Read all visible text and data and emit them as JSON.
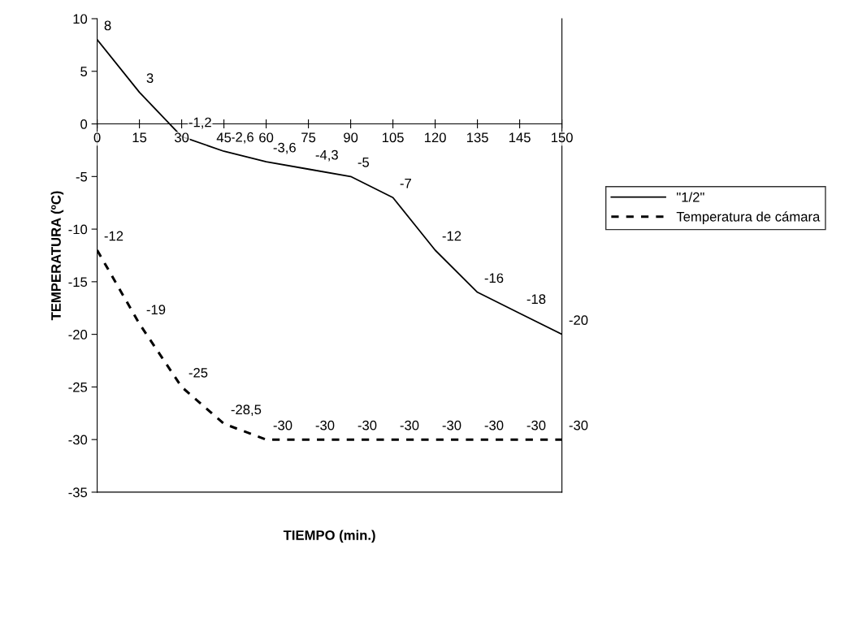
{
  "chart_data": {
    "type": "line",
    "xlabel": "TIEMPO (min.)",
    "ylabel": "TEMPERATURA (ºC)",
    "categories": [
      "0",
      "15",
      "30",
      "45",
      "60",
      "75",
      "90",
      "105",
      "120",
      "135",
      "145",
      "150"
    ],
    "series": [
      {
        "name": "\"1/2\"",
        "color": "#000000",
        "line_style": "solid",
        "values": [
          8,
          3,
          -1.2,
          -2.6,
          -3.6,
          -4.3,
          -5,
          -7,
          -12,
          -16,
          -18,
          -20
        ],
        "value_labels": [
          "8",
          "3",
          "-1,2",
          "-2,6",
          "-3,6",
          "-4,3",
          "-5",
          "-7",
          "-12",
          "-16",
          "-18",
          "-20"
        ]
      },
      {
        "name": "Temperatura de cámara",
        "color": "#000000",
        "line_style": "dashed",
        "values": [
          -12,
          -19,
          -25,
          -28.5,
          -30,
          -30,
          -30,
          -30,
          -30,
          -30,
          -30,
          -30
        ],
        "value_labels": [
          "-12",
          "-19",
          "-25",
          "-28,5",
          "-30",
          "-30",
          "-30",
          "-30",
          "-30",
          "-30",
          "-30",
          "-30"
        ]
      }
    ],
    "ylim": [
      -35,
      10
    ],
    "yticks": [
      -35,
      -30,
      -25,
      -20,
      -15,
      -10,
      -5,
      0,
      5,
      10
    ],
    "grid": false,
    "legend": "right",
    "marker": "none"
  }
}
